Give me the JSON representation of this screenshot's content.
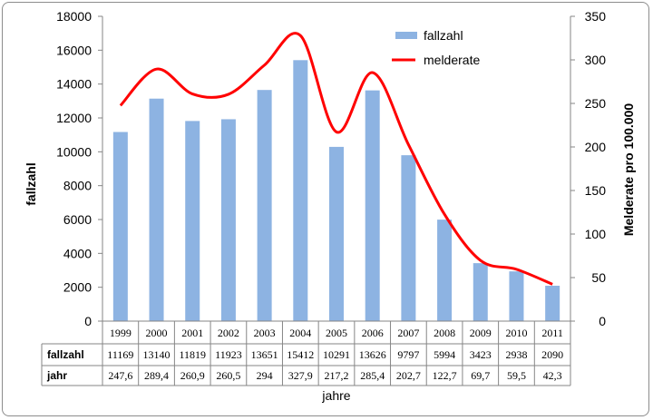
{
  "chart_data": {
    "type": "bar",
    "categories": [
      "1999",
      "2000",
      "2001",
      "2002",
      "2003",
      "2004",
      "2005",
      "2006",
      "2007",
      "2008",
      "2009",
      "2010",
      "2011"
    ],
    "series": [
      {
        "name": "fallzahl",
        "type": "bar",
        "axis": "left",
        "color": "#8db3e2",
        "values": [
          11169,
          13140,
          11819,
          11923,
          13651,
          15412,
          10291,
          13626,
          9797,
          5994,
          3423,
          2938,
          2090
        ]
      },
      {
        "name": "melderate",
        "type": "line",
        "axis": "right",
        "color": "#ff0000",
        "values": [
          247.6,
          289.4,
          260.9,
          260.5,
          294,
          327.9,
          217.2,
          285.4,
          202.7,
          122.7,
          69.7,
          59.5,
          42.3
        ]
      }
    ],
    "ylabel": "fallzahl",
    "y2label": "Melderate pro 100.000",
    "xlabel": "jahre",
    "ylim": [
      0,
      18000
    ],
    "y2lim": [
      0,
      350
    ],
    "yticks": [
      "0",
      "2000",
      "4000",
      "6000",
      "8000",
      "10000",
      "12000",
      "14000",
      "16000",
      "18000"
    ],
    "y2ticks": [
      "0",
      "50",
      "100",
      "150",
      "200",
      "250",
      "300",
      "350"
    ],
    "legend_position": "top-right",
    "grid": false,
    "table": {
      "row_labels": [
        "fallzahl",
        "jahr"
      ],
      "rows": [
        [
          "11169",
          "13140",
          "11819",
          "11923",
          "13651",
          "15412",
          "10291",
          "13626",
          "9797",
          "5994",
          "3423",
          "2938",
          "2090"
        ],
        [
          "247,6",
          "289,4",
          "260,9",
          "260,5",
          "294",
          "327,9",
          "217,2",
          "285,4",
          "202,7",
          "122,7",
          "69,7",
          "59,5",
          "42,3"
        ]
      ]
    }
  }
}
